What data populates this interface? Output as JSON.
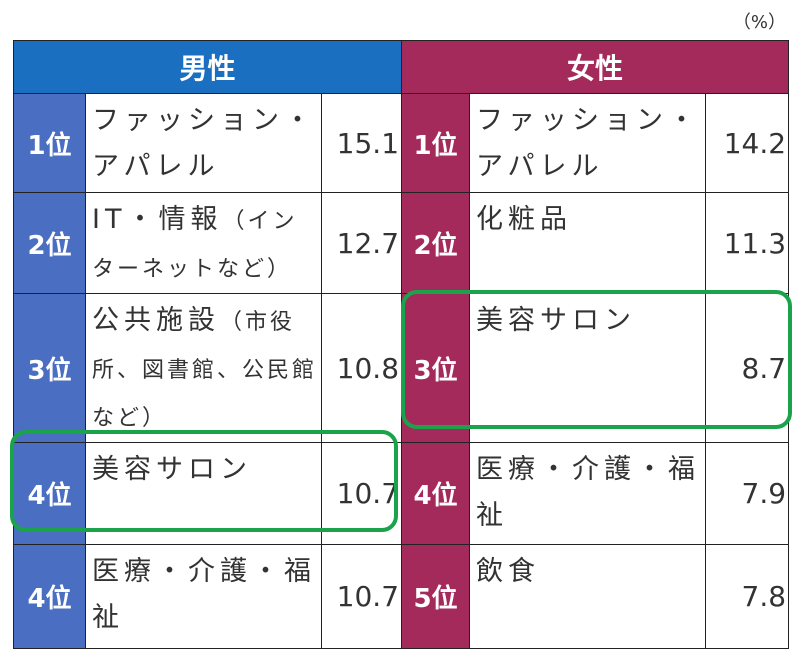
{
  "unit": "（%）",
  "headers": {
    "male": "男性",
    "female": "女性"
  },
  "rows": [
    {
      "male": {
        "rank": "1位",
        "category": "ファッション・アパレル",
        "note": "",
        "value": "15.1"
      },
      "female": {
        "rank": "1位",
        "category": "ファッション・アパレル",
        "note": "",
        "value": "14.2"
      }
    },
    {
      "male": {
        "rank": "2位",
        "category": "IT・情報",
        "note": "（インターネットなど）",
        "value": "12.7"
      },
      "female": {
        "rank": "2位",
        "category": "化粧品",
        "note": "",
        "value": "11.3"
      }
    },
    {
      "male": {
        "rank": "3位",
        "category": "公共施設",
        "note": "（市役所、図書館、公民館など）",
        "value": "10.8"
      },
      "female": {
        "rank": "3位",
        "category": "美容サロン",
        "note": "",
        "value": "8.7"
      }
    },
    {
      "male": {
        "rank": "4位",
        "category": "美容サロン",
        "note": "",
        "value": "10.7"
      },
      "female": {
        "rank": "4位",
        "category": "医療・介護・福祉",
        "note": "",
        "value": "7.9"
      }
    },
    {
      "male": {
        "rank": "4位",
        "category": "医療・介護・福祉",
        "note": "",
        "value": "10.7"
      },
      "female": {
        "rank": "5位",
        "category": "飲食",
        "note": "",
        "value": "7.8"
      }
    }
  ],
  "highlight_color": "#1aa34a"
}
